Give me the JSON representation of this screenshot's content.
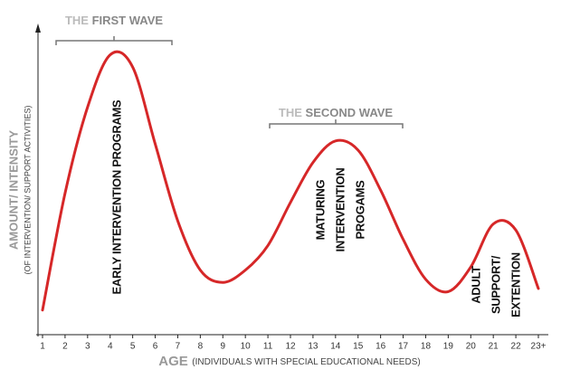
{
  "chart_data": {
    "type": "line",
    "categories": [
      "1",
      "2",
      "3",
      "4",
      "5",
      "6",
      "7",
      "8",
      "9",
      "10",
      "11",
      "12",
      "13",
      "14",
      "15",
      "16",
      "17",
      "18",
      "19",
      "20",
      "21",
      "22",
      "23+"
    ],
    "values": [
      8,
      46,
      74,
      91,
      87,
      62,
      37,
      21,
      17,
      21,
      29,
      43,
      56,
      63,
      60,
      47,
      31,
      18,
      14,
      22,
      36,
      34,
      15
    ],
    "color": "#d62728",
    "ylim": [
      0,
      100
    ],
    "xlabel": "AGE",
    "xlabel_note": "(INDIVIDUALS WITH SPECIAL EDUCATIONAL NEEDS)",
    "ylabel": "AMOUNT/ INTENSITY",
    "ylabel_note": "(OF INTERVENTION/ SUPPORT ACTIVITIES)",
    "annotations": [
      {
        "lead": "THE",
        "text": "FIRST WAVE"
      },
      {
        "lead": "THE",
        "text": "SECOND WAVE"
      }
    ],
    "phase_labels": [
      {
        "lines": [
          "EARLY INTERVENTION PROGRAMS"
        ]
      },
      {
        "lines": [
          "MATURING",
          "INTERVENTION",
          "PROGAMS"
        ]
      },
      {
        "lines": [
          "ADULT",
          "SUPPORT/",
          "EXTENTION"
        ]
      }
    ]
  }
}
